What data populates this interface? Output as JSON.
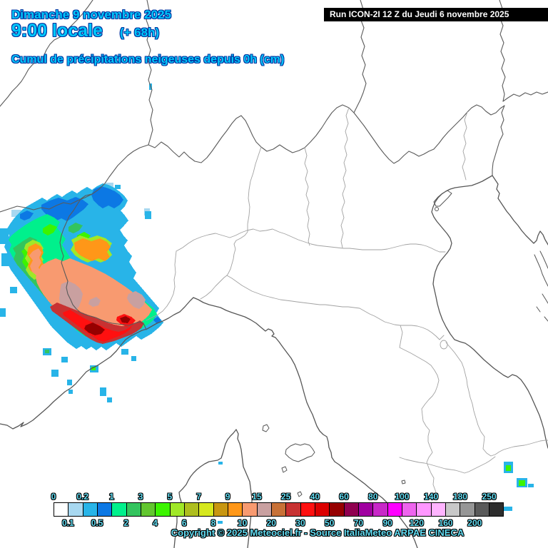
{
  "header": {
    "date_line": "Dimanche 9 novembre 2025",
    "time_line": "9:00 locale",
    "forecast_offset": "(+ 68h)",
    "variable_line": "Cumul de précipitations neigeuses depuis 0h (cm)"
  },
  "run_banner": {
    "text": "Run ICON-2I 12 Z du Jeudi 6 novembre 2025"
  },
  "footer": {
    "copyright": "Copyright © 2025 Meteociel.fr - Source ItaliaMeteo ARPAE CINECA"
  },
  "colorbar": {
    "unit": "cm",
    "boundaries": [
      "0",
      "0.1",
      "0.2",
      "0.5",
      "1",
      "2",
      "3",
      "4",
      "5",
      "6",
      "7",
      "8",
      "9",
      "10",
      "15",
      "20",
      "25",
      "30",
      "40",
      "50",
      "60",
      "70",
      "80",
      "90",
      "100",
      "120",
      "140",
      "160",
      "180",
      "200",
      "250"
    ],
    "cell_colors": [
      "#FFFFFF",
      "#A8D8F0",
      "#28B4E8",
      "#0C78E4",
      "#00F08C",
      "#33C45E",
      "#62C62F",
      "#3CF400",
      "#A0E828",
      "#AEBE1E",
      "#D6E81E",
      "#C89611",
      "#FF9718",
      "#F89A70",
      "#C9A0A0",
      "#C87137",
      "#C83232",
      "#FF1010",
      "#DC0000",
      "#960000",
      "#900050",
      "#A000A0",
      "#C828C8",
      "#FF00FF",
      "#EE64EE",
      "#FF96FF",
      "#FFB4FF",
      "#C8C8C8",
      "#969696",
      "#5A5A5A",
      "#2D2D2D"
    ]
  },
  "colors": {
    "title_text": "#00C8FA",
    "title_outline": "#0033A0",
    "legend_text": "#62DCF2",
    "banner_bg": "#000000",
    "banner_text": "#FFFFFF",
    "coastline": "#565656",
    "border_national": "#5A5A5A",
    "border_regional": "#A2A2A2"
  }
}
